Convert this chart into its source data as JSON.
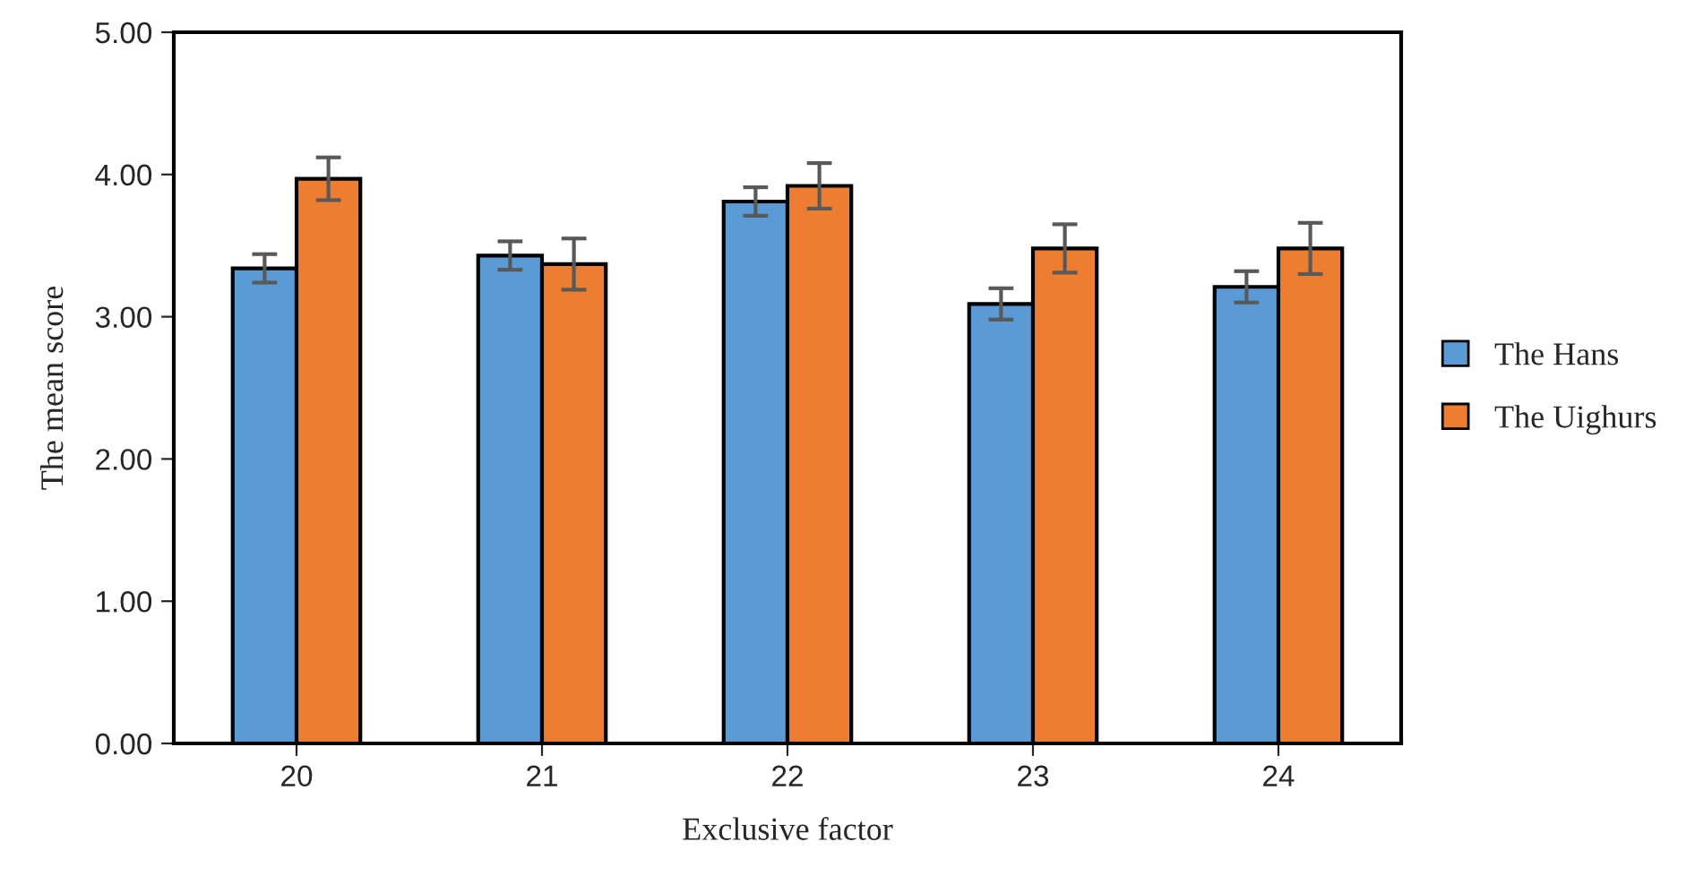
{
  "chart_data": {
    "type": "bar",
    "xlabel": "Exclusive factor",
    "ylabel": "The mean score",
    "categories": [
      "20",
      "21",
      "22",
      "23",
      "24"
    ],
    "series": [
      {
        "name": "The Hans",
        "color": "#5b9bd5",
        "values": [
          3.34,
          3.43,
          3.81,
          3.09,
          3.21
        ],
        "errors": [
          0.1,
          0.1,
          0.1,
          0.11,
          0.11
        ]
      },
      {
        "name": "The Uighurs",
        "color": "#ed7d31",
        "values": [
          3.97,
          3.37,
          3.92,
          3.48,
          3.48
        ],
        "errors": [
          0.15,
          0.18,
          0.16,
          0.17,
          0.18
        ]
      }
    ],
    "ylim": [
      0,
      5
    ],
    "yticks": [
      {
        "value": 0,
        "label": "0.00"
      },
      {
        "value": 1,
        "label": "1.00"
      },
      {
        "value": 2,
        "label": "2.00"
      },
      {
        "value": 3,
        "label": "3.00"
      },
      {
        "value": 4,
        "label": "4.00"
      },
      {
        "value": 5,
        "label": "5.00"
      }
    ],
    "grid": false,
    "legend": "right"
  }
}
